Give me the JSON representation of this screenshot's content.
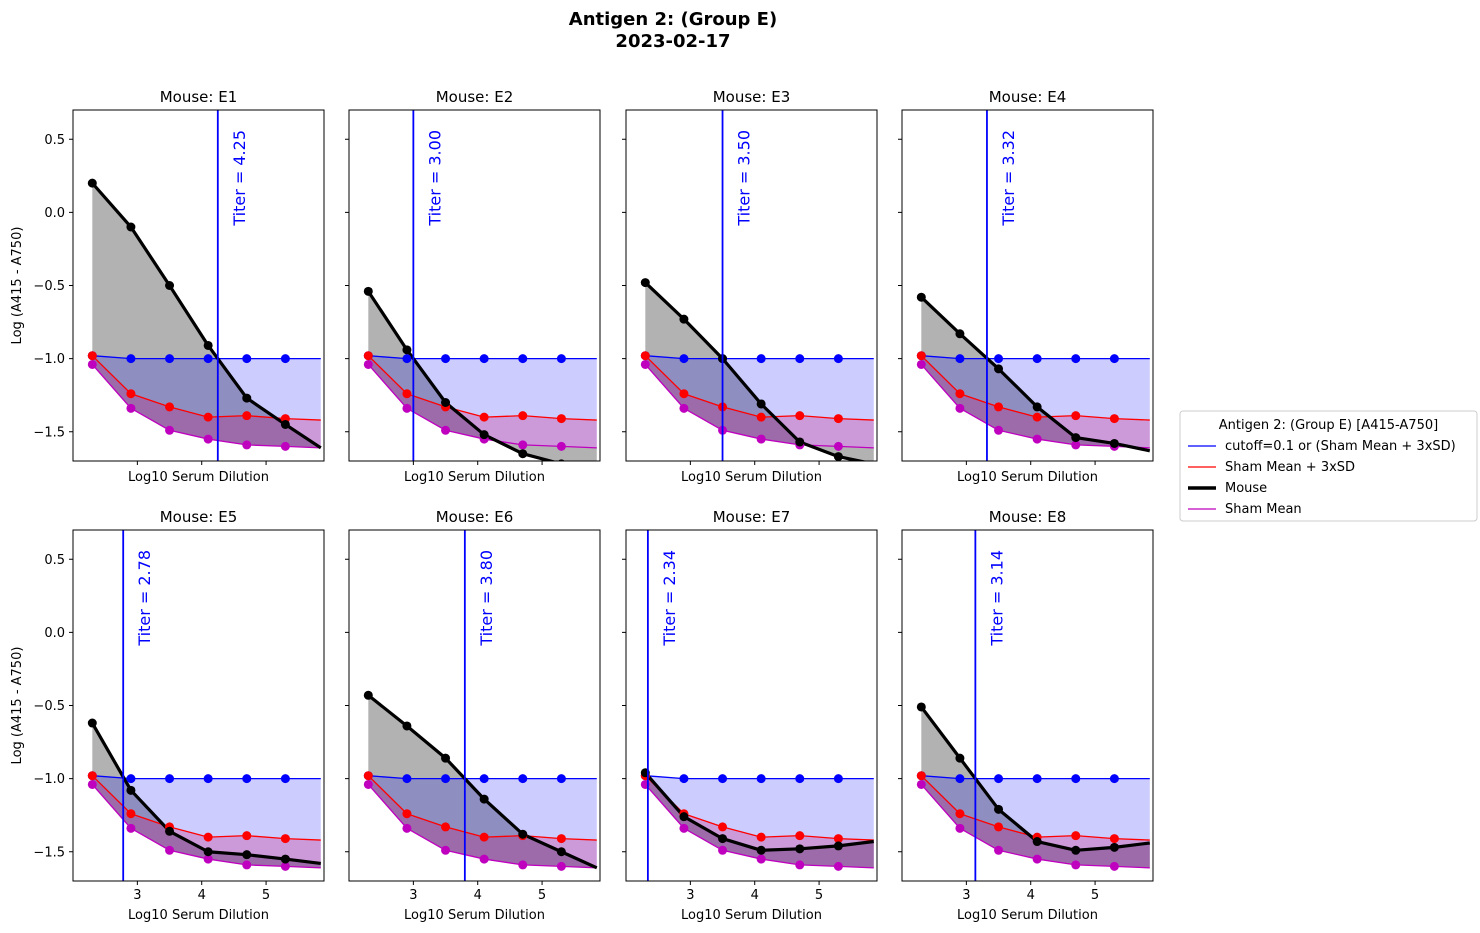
{
  "figure": {
    "title_line1": "Antigen 2: (Group E)",
    "title_line2": "2023-02-17"
  },
  "colors": {
    "cutoff": "#0000ff",
    "cutoff_fill": "#ccccff",
    "sham_sd": "#ff0000",
    "sham_mean": "#bf00bf",
    "sham_fill": "#d9a6cf",
    "mouse": "#000000",
    "mouse_fill": "#b3b3b3"
  },
  "chart_data": {
    "type": "line",
    "xlabel": "Log10 Serum Dilution",
    "ylabel": "Log (A415 - A750)",
    "xlim": [
      2.0,
      5.9
    ],
    "ylim": [
      -1.7,
      0.7
    ],
    "xticks": [
      3,
      4,
      5
    ],
    "yticks": [
      0.5,
      0.0,
      -0.5,
      -1.0,
      -1.5
    ],
    "ytick_labels": [
      "0.5",
      "0.0",
      "−0.5",
      "−1.0",
      "−1.5"
    ],
    "x": [
      2.3,
      2.9,
      3.5,
      4.1,
      4.7,
      5.3
    ],
    "x_fill_end": 5.85,
    "cutoff_values": [
      -0.98,
      -1.0,
      -1.0,
      -1.0,
      -1.0,
      -1.0
    ],
    "cutoff_end": -1.0,
    "sham_sd_values": [
      -0.98,
      -1.24,
      -1.33,
      -1.4,
      -1.39,
      -1.41
    ],
    "sham_sd_end": -1.42,
    "sham_mean_values": [
      -1.04,
      -1.34,
      -1.49,
      -1.55,
      -1.59,
      -1.6
    ],
    "sham_mean_end": -1.61,
    "legend": {
      "title": "Antigen 2: (Group E) [A415-A750]",
      "entries": [
        "cutoff=0.1 or (Sham Mean + 3xSD)",
        "Sham Mean + 3xSD",
        "Mouse",
        "Sham Mean"
      ],
      "placement": "right-center"
    },
    "panels": [
      {
        "title": "Mouse: E1",
        "titer": 4.25,
        "titer_label": "Titer = 4.25",
        "mouse_values": [
          0.2,
          -0.1,
          -0.5,
          -0.91,
          -1.27,
          -1.45
        ],
        "mouse_end": -1.61
      },
      {
        "title": "Mouse: E2",
        "titer": 3.0,
        "titer_label": "Titer = 3.00",
        "mouse_values": [
          -0.54,
          -0.94,
          -1.3,
          -1.52,
          -1.65,
          -1.72
        ],
        "mouse_end": -1.78
      },
      {
        "title": "Mouse: E3",
        "titer": 3.5,
        "titer_label": "Titer = 3.50",
        "mouse_values": [
          -0.48,
          -0.73,
          -1.0,
          -1.31,
          -1.57,
          -1.67
        ],
        "mouse_end": -1.72
      },
      {
        "title": "Mouse: E4",
        "titer": 3.32,
        "titer_label": "Titer = 3.32",
        "mouse_values": [
          -0.58,
          -0.83,
          -1.07,
          -1.33,
          -1.54,
          -1.58
        ],
        "mouse_end": -1.63
      },
      {
        "title": "Mouse: E5",
        "titer": 2.78,
        "titer_label": "Titer = 2.78",
        "mouse_values": [
          -0.62,
          -1.08,
          -1.36,
          -1.5,
          -1.52,
          -1.55
        ],
        "mouse_end": -1.58
      },
      {
        "title": "Mouse: E6",
        "titer": 3.8,
        "titer_label": "Titer = 3.80",
        "mouse_values": [
          -0.43,
          -0.64,
          -0.86,
          -1.14,
          -1.38,
          -1.5
        ],
        "mouse_end": -1.61
      },
      {
        "title": "Mouse: E7",
        "titer": 2.34,
        "titer_label": "Titer = 2.34",
        "mouse_values": [
          -0.96,
          -1.26,
          -1.41,
          -1.49,
          -1.48,
          -1.46
        ],
        "mouse_end": -1.43
      },
      {
        "title": "Mouse: E8",
        "titer": 3.14,
        "titer_label": "Titer = 3.14",
        "mouse_values": [
          -0.51,
          -0.86,
          -1.21,
          -1.43,
          -1.49,
          -1.47
        ],
        "mouse_end": -1.44
      }
    ]
  }
}
